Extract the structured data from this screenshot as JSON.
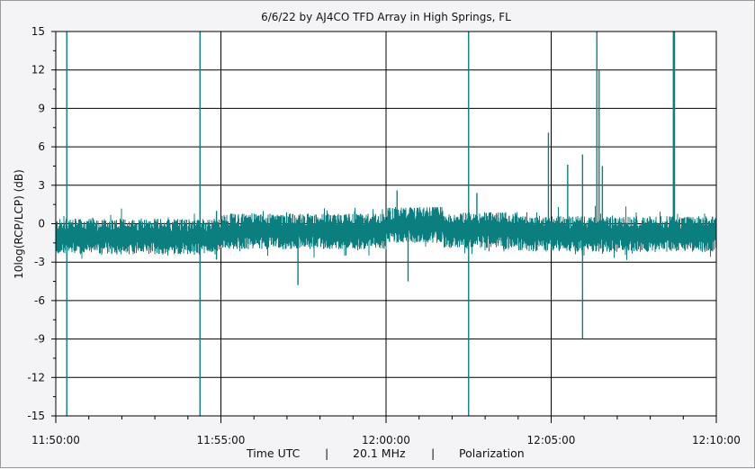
{
  "chart_data": {
    "type": "line",
    "title": "6/6/22  by  AJ4CO TFD Array  in  High Springs, FL",
    "ylabel": "10log(RCP/LCP) (dB)",
    "xlabel_parts": [
      "Time UTC",
      "|",
      "20.1 MHz",
      "|",
      "Polarization"
    ],
    "ylim": [
      -15,
      15
    ],
    "yticks": [
      15,
      12,
      9,
      6,
      3,
      0,
      -3,
      -6,
      -9,
      -12,
      -15
    ],
    "ytick_labels": [
      "15",
      "12",
      "9",
      "6",
      "3",
      "0",
      "-3",
      "-6",
      "-9",
      "-12",
      "-15"
    ],
    "xlim": [
      "11:50:00",
      "12:10:00"
    ],
    "xticks": [
      "11:50:00",
      "11:55:00",
      "12:00:00",
      "12:05:00",
      "12:10:00"
    ],
    "grid": true,
    "series": [
      {
        "color": "#0b7f7f",
        "baseline_segments": [
          {
            "start": "11:50:00",
            "end": "11:54:59",
            "level": -1.0
          },
          {
            "start": "11:55:00",
            "end": "11:59:59",
            "level": -0.6
          },
          {
            "start": "12:00:00",
            "end": "12:01:45",
            "level": -0.1
          },
          {
            "start": "12:01:45",
            "end": "12:04:00",
            "level": -0.5
          },
          {
            "start": "12:04:00",
            "end": "12:10:00",
            "level": -0.8
          }
        ],
        "spikes": [
          {
            "t": "11:50:20",
            "min": -15,
            "max": 15
          },
          {
            "t": "11:54:22",
            "min": -15,
            "max": 15
          },
          {
            "t": "11:54:52",
            "min": -2.8,
            "max": 1.0
          },
          {
            "t": "11:57:20",
            "min": -4.8,
            "max": -1.0
          },
          {
            "t": "12:00:20",
            "min": -0.5,
            "max": 2.6
          },
          {
            "t": "12:00:40",
            "min": -4.5,
            "max": 0.0
          },
          {
            "t": "12:02:30",
            "min": -15,
            "max": 15
          },
          {
            "t": "12:02:45",
            "min": -0.8,
            "max": 2.4
          },
          {
            "t": "12:04:55",
            "min": -1.0,
            "max": 7.1
          },
          {
            "t": "12:05:30",
            "min": -1.0,
            "max": 4.6
          },
          {
            "t": "12:05:57",
            "min": -9.0,
            "max": 5.4
          },
          {
            "t": "12:06:23",
            "min": -0.5,
            "max": 15
          },
          {
            "t": "12:06:27",
            "min": -0.5,
            "max": 12.0
          },
          {
            "t": "12:06:33",
            "min": -1.0,
            "max": 4.5
          },
          {
            "t": "12:08:42",
            "min": -0.5,
            "max": 15
          },
          {
            "t": "12:08:44",
            "min": -0.5,
            "max": 15
          }
        ]
      }
    ]
  }
}
